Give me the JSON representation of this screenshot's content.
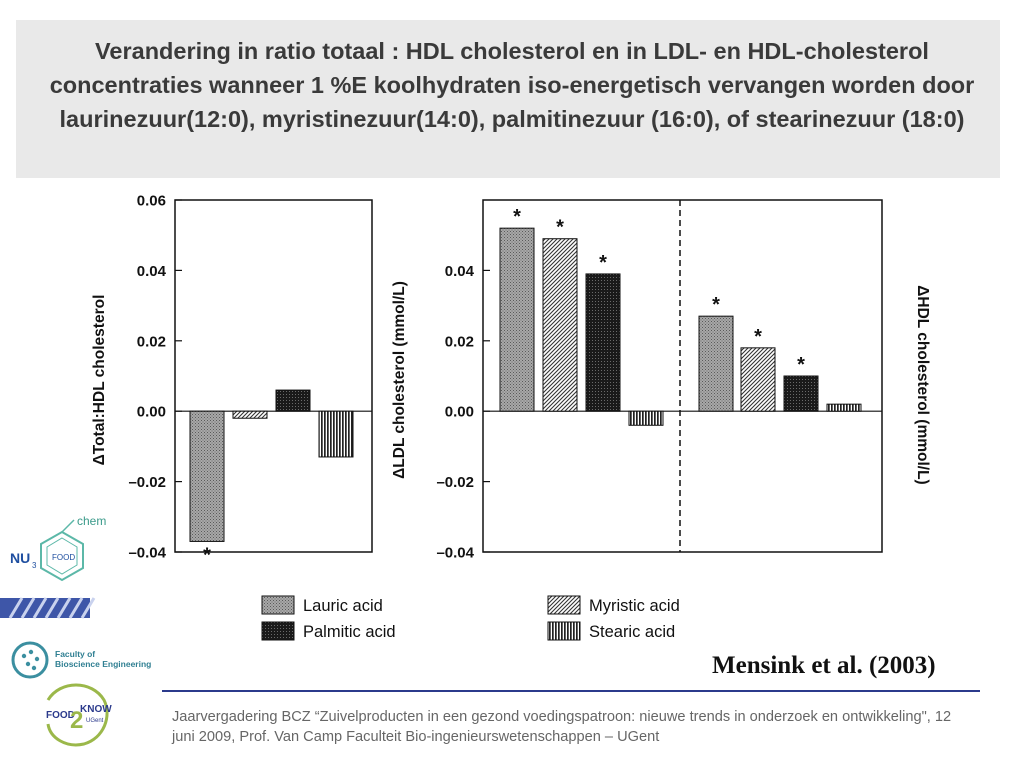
{
  "title": "Verandering in ratio totaal : HDL cholesterol en in LDL- en HDL-cholesterol concentraties wanneer 1 %E koolhydraten iso-energetisch vervangen worden door laurinezuur(12:0), myristinezuur(14:0), palmitinezuur (16:0), of stearinezuur (18:0)",
  "citation": "Mensink et al. (2003)",
  "footer": "Jaarvergadering BCZ “Zuivelproducten in een gezond voedingspatroon: nieuwe trends in onderzoek en ontwikkeling\", 12 juni 2009, Prof. Van Camp  Faculteit Bio-ingenieurswetenschappen – UGent",
  "logos": {
    "nu3food": {
      "nu": "NU",
      "sub": "3",
      "food": "FOOD",
      "chem": "chem"
    },
    "faculty": {
      "line1": "Faculty of",
      "line2": "Bioscience Engineering"
    },
    "food2know": {
      "food": "FOOD",
      "two": "2",
      "know": "KNOW",
      "ugent": "UGent"
    }
  },
  "colors": {
    "title_bg": "#e9e9e9",
    "footer_rule": "#2b3a8c",
    "lauric": "#9a9a9a",
    "palmitic": "#1c1c1c"
  },
  "chart_data": [
    {
      "type": "bar",
      "ylabel": "ΔTotal:HDL cholesterol",
      "ylim": [
        -0.04,
        0.06
      ],
      "yticks": [
        "0.06",
        "0.04",
        "0.02",
        "0.00",
        "–0.02",
        "–0.04"
      ],
      "grid": false,
      "categories": [
        "Lauric acid",
        "Myristic acid",
        "Palmitic acid",
        "Stearic acid"
      ],
      "values": [
        -0.037,
        -0.002,
        0.006,
        -0.013
      ],
      "significance": [
        "*",
        "",
        "",
        ""
      ]
    },
    {
      "type": "bar",
      "ylabel": "ΔLDL cholesterol (mmol/L)",
      "ylim": [
        -0.04,
        0.06
      ],
      "yticks": [
        "0.04",
        "0.02",
        "0.00",
        "–0.02",
        "–0.04"
      ],
      "grid": false,
      "categories": [
        "Lauric acid",
        "Myristic acid",
        "Palmitic acid",
        "Stearic acid"
      ],
      "values": [
        0.052,
        0.049,
        0.039,
        -0.004
      ],
      "significance": [
        "*",
        "*",
        "*",
        ""
      ]
    },
    {
      "type": "bar",
      "ylabel": "ΔHDL cholesterol (mmol/L)",
      "ylim": [
        -0.04,
        0.06
      ],
      "grid": false,
      "categories": [
        "Lauric acid",
        "Myristic acid",
        "Palmitic acid",
        "Stearic acid"
      ],
      "values": [
        0.027,
        0.018,
        0.01,
        0.002
      ],
      "significance": [
        "*",
        "*",
        "*",
        ""
      ]
    }
  ],
  "legend": [
    {
      "label": "Lauric acid",
      "pattern": "lauric"
    },
    {
      "label": "Myristic acid",
      "pattern": "myristic"
    },
    {
      "label": "Palmitic acid",
      "pattern": "palmitic"
    },
    {
      "label": "Stearic acid",
      "pattern": "stearic"
    }
  ]
}
